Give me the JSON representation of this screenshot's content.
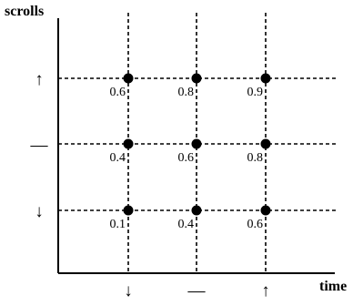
{
  "axes": {
    "x_title": "time",
    "y_title": "scrolls",
    "x_ticks": [
      "↓",
      "—",
      "↑"
    ],
    "y_ticks": [
      "↑",
      "—",
      "↓"
    ]
  },
  "grid": {
    "columns": 3,
    "rows": 3,
    "values": [
      [
        "0.6",
        "0.8",
        "0.9"
      ],
      [
        "0.4",
        "0.6",
        "0.8"
      ],
      [
        "0.1",
        "0.4",
        "0.6"
      ]
    ]
  },
  "colors": {
    "line": "#000000",
    "point": "#000000",
    "background": "#ffffff"
  }
}
